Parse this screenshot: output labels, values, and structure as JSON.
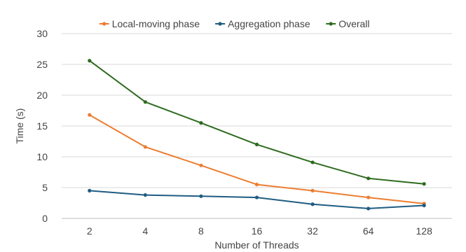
{
  "chart_data": {
    "type": "line",
    "title": "",
    "xlabel": "Number of Threads",
    "ylabel": "Time (s)",
    "categories": [
      "2",
      "4",
      "8",
      "16",
      "32",
      "64",
      "128"
    ],
    "ylim": [
      0,
      30
    ],
    "yticks": [
      0,
      5,
      10,
      15,
      20,
      25,
      30
    ],
    "grid": "horizontal",
    "legend_position": "top",
    "series": [
      {
        "name": "Local-moving phase",
        "color": "#ED7D31",
        "values": [
          16.8,
          11.6,
          8.6,
          5.5,
          4.5,
          3.4,
          2.4
        ]
      },
      {
        "name": "Aggregation phase",
        "color": "#1F5C82",
        "values": [
          4.5,
          3.8,
          3.6,
          3.4,
          2.3,
          1.6,
          2.1
        ]
      },
      {
        "name": "Overall",
        "color": "#2E6B1F",
        "values": [
          25.6,
          18.9,
          15.5,
          12.0,
          9.1,
          6.5,
          5.6
        ]
      }
    ]
  }
}
